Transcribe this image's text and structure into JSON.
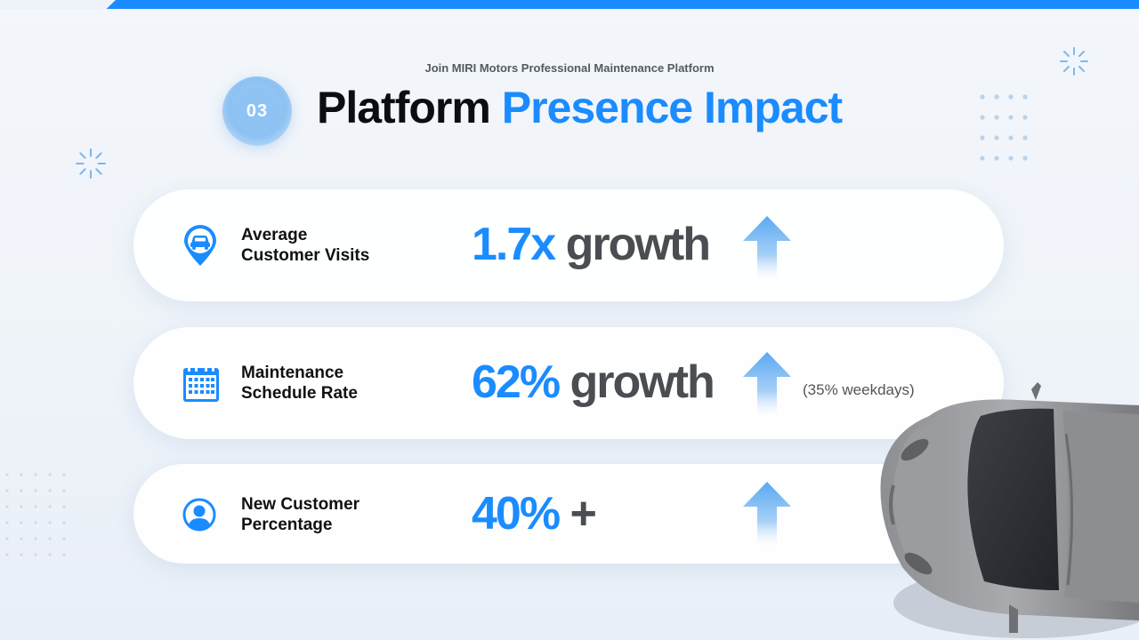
{
  "header": {
    "subtitle": "Join MIRI Motors Professional Maintenance Platform",
    "badge_number": "03",
    "title_part1": "Platform",
    "title_part2": "Presence Impact"
  },
  "metrics": [
    {
      "label_line1": "Average",
      "label_line2": "Customer Visits",
      "value": "1.7x",
      "suffix": "growth",
      "icon": "location-car-icon"
    },
    {
      "label_line1": "Maintenance",
      "label_line2": "Schedule Rate",
      "value": "62%",
      "suffix": "growth",
      "note": "(35% weekdays)",
      "icon": "calendar-icon"
    },
    {
      "label_line1": "New Customer",
      "label_line2": "Percentage",
      "value": "40%",
      "suffix": "+",
      "icon": "user-icon"
    }
  ],
  "colors": {
    "accent": "#1a8cff",
    "dark": "#0c0d10",
    "muted": "#4a4d52"
  }
}
